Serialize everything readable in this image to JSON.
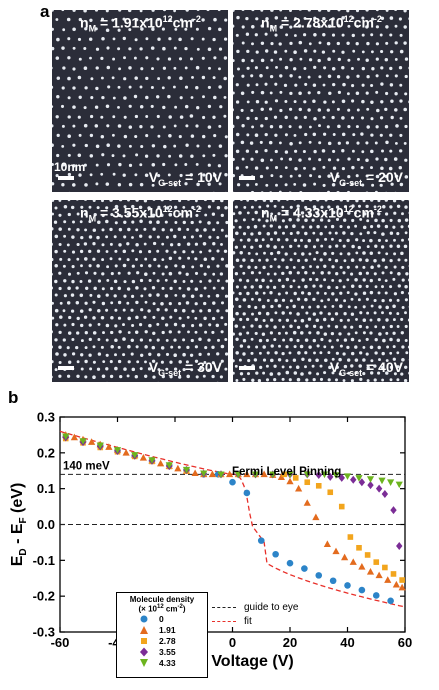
{
  "panel_a": {
    "letter": "a",
    "scale_label": "10nm",
    "images": [
      {
        "density_value": "1.91x10",
        "density_exp": "12",
        "density_unit": "cm",
        "density_unit_exp": "-2",
        "voltage_value": "= 10V"
      },
      {
        "density_value": "2.78x10",
        "density_exp": "12",
        "density_unit": "cm",
        "density_unit_exp": "-2",
        "voltage_value": "= 20V"
      },
      {
        "density_value": "3.55x10",
        "density_exp": "12",
        "density_unit": "cm",
        "density_unit_exp": "-2",
        "voltage_value": "= 30V"
      },
      {
        "density_value": "4.33x10",
        "density_exp": "12",
        "density_unit": "cm",
        "density_unit_exp": "-2",
        "voltage_value": "= 40V"
      }
    ],
    "density_symbol": "n",
    "density_sub": "M",
    "voltage_symbol": "V",
    "voltage_sub": "G-set"
  },
  "panel_b": {
    "letter": "b",
    "chart_data": {
      "type": "scatter",
      "xlabel": "Gate Voltage (V)",
      "ylabel_main": "E",
      "ylabel_sub1": "D",
      "ylabel_mid": " - E",
      "ylabel_sub2": "F",
      "ylabel_unit": " (eV)",
      "xlim": [
        -60,
        60
      ],
      "ylim": [
        -0.3,
        0.3
      ],
      "xticks": [
        -60,
        -40,
        -20,
        0,
        20,
        40,
        60
      ],
      "yticks": [
        -0.3,
        -0.2,
        -0.1,
        0.0,
        0.1,
        0.2,
        0.3
      ],
      "ytick_labels": [
        "-0.3",
        "-0.2",
        "-0.1",
        "0.0",
        "0.1",
        "0.2",
        "0.3"
      ],
      "annotations": {
        "pinning": "Fermi Level Pinning",
        "mev": "140 meV"
      },
      "guide_lines": [
        0.14,
        0.0
      ],
      "legend": {
        "title": "Molecule density",
        "unit_prefix": "(× 10",
        "unit_exp": "12",
        "unit_suffix": " cm",
        "unit_exp2": "-2",
        "unit_close": ")"
      },
      "line_legend": {
        "guide": "guide to eye",
        "fit": "fit"
      },
      "series": [
        {
          "name": "0",
          "color": "#2c84c8",
          "marker": "circle",
          "points": [
            [
              -58,
              0.245
            ],
            [
              -52,
              0.232
            ],
            [
              -46,
              0.22
            ],
            [
              -40,
              0.207
            ],
            [
              -34,
              0.192
            ],
            [
              -28,
              0.178
            ],
            [
              -22,
              0.165
            ],
            [
              -16,
              0.152
            ],
            [
              -10,
              0.14
            ],
            [
              -5,
              0.14
            ],
            [
              0,
              0.118
            ],
            [
              5,
              0.088
            ],
            [
              10,
              -0.045
            ],
            [
              15,
              -0.083
            ],
            [
              20,
              -0.108
            ],
            [
              25,
              -0.123
            ],
            [
              30,
              -0.142
            ],
            [
              35,
              -0.157
            ],
            [
              40,
              -0.17
            ],
            [
              45,
              -0.183
            ],
            [
              50,
              -0.198
            ],
            [
              55,
              -0.213
            ]
          ]
        },
        {
          "name": "1.91",
          "color": "#e36b1e",
          "marker": "triangle",
          "points": [
            [
              -58,
              0.25
            ],
            [
              -55,
              0.243
            ],
            [
              -52,
              0.237
            ],
            [
              -49,
              0.23
            ],
            [
              -46,
              0.223
            ],
            [
              -43,
              0.216
            ],
            [
              -40,
              0.208
            ],
            [
              -37,
              0.2
            ],
            [
              -34,
              0.193
            ],
            [
              -31,
              0.186
            ],
            [
              -28,
              0.178
            ],
            [
              -25,
              0.17
            ],
            [
              -22,
              0.163
            ],
            [
              -19,
              0.156
            ],
            [
              -16,
              0.149
            ],
            [
              -13,
              0.143
            ],
            [
              -10,
              0.14
            ],
            [
              -7,
              0.14
            ],
            [
              -4,
              0.14
            ],
            [
              -1,
              0.14
            ],
            [
              2,
              0.14
            ],
            [
              5,
              0.14
            ],
            [
              8,
              0.14
            ],
            [
              11,
              0.14
            ],
            [
              14,
              0.138
            ],
            [
              17,
              0.132
            ],
            [
              20,
              0.12
            ],
            [
              23,
              0.1
            ],
            [
              26,
              0.06
            ],
            [
              29,
              0.02
            ],
            [
              33,
              -0.055
            ],
            [
              36,
              -0.075
            ],
            [
              39,
              -0.092
            ],
            [
              42,
              -0.105
            ],
            [
              45,
              -0.118
            ],
            [
              48,
              -0.132
            ],
            [
              51,
              -0.142
            ],
            [
              54,
              -0.155
            ],
            [
              57,
              -0.168
            ],
            [
              59,
              -0.176
            ]
          ]
        },
        {
          "name": "2.78",
          "color": "#f2a51d",
          "marker": "square",
          "points": [
            [
              -58,
              0.24
            ],
            [
              -52,
              0.228
            ],
            [
              -46,
              0.215
            ],
            [
              -40,
              0.203
            ],
            [
              -34,
              0.19
            ],
            [
              -28,
              0.176
            ],
            [
              -22,
              0.162
            ],
            [
              -16,
              0.15
            ],
            [
              -10,
              0.142
            ],
            [
              -4,
              0.14
            ],
            [
              2,
              0.14
            ],
            [
              8,
              0.14
            ],
            [
              14,
              0.14
            ],
            [
              18,
              0.14
            ],
            [
              22,
              0.13
            ],
            [
              26,
              0.118
            ],
            [
              30,
              0.108
            ],
            [
              34,
              0.09
            ],
            [
              38,
              0.05
            ],
            [
              41,
              -0.035
            ],
            [
              44,
              -0.065
            ],
            [
              47,
              -0.085
            ],
            [
              50,
              -0.105
            ],
            [
              53,
              -0.12
            ],
            [
              56,
              -0.138
            ],
            [
              59,
              -0.155
            ]
          ]
        },
        {
          "name": "3.55",
          "color": "#7b2d96",
          "marker": "diamond",
          "points": [
            [
              -58,
              0.243
            ],
            [
              -52,
              0.23
            ],
            [
              -46,
              0.218
            ],
            [
              -40,
              0.205
            ],
            [
              -34,
              0.192
            ],
            [
              -28,
              0.178
            ],
            [
              -22,
              0.163
            ],
            [
              -16,
              0.152
            ],
            [
              -10,
              0.142
            ],
            [
              -4,
              0.14
            ],
            [
              2,
              0.14
            ],
            [
              8,
              0.14
            ],
            [
              14,
              0.14
            ],
            [
              20,
              0.14
            ],
            [
              26,
              0.14
            ],
            [
              30,
              0.138
            ],
            [
              34,
              0.133
            ],
            [
              38,
              0.13
            ],
            [
              42,
              0.125
            ],
            [
              45,
              0.118
            ],
            [
              48,
              0.11
            ],
            [
              51,
              0.1
            ],
            [
              53,
              0.085
            ],
            [
              56,
              0.04
            ],
            [
              58,
              -0.06
            ]
          ]
        },
        {
          "name": "4.33",
          "color": "#6cb41e",
          "marker": "tri-down",
          "points": [
            [
              -58,
              0.246
            ],
            [
              -52,
              0.233
            ],
            [
              -46,
              0.221
            ],
            [
              -40,
              0.208
            ],
            [
              -34,
              0.194
            ],
            [
              -28,
              0.18
            ],
            [
              -22,
              0.166
            ],
            [
              -16,
              0.153
            ],
            [
              -10,
              0.143
            ],
            [
              -4,
              0.14
            ],
            [
              2,
              0.14
            ],
            [
              8,
              0.14
            ],
            [
              14,
              0.14
            ],
            [
              20,
              0.14
            ],
            [
              26,
              0.14
            ],
            [
              32,
              0.14
            ],
            [
              36,
              0.138
            ],
            [
              40,
              0.135
            ],
            [
              44,
              0.13
            ],
            [
              48,
              0.127
            ],
            [
              52,
              0.123
            ],
            [
              55,
              0.118
            ],
            [
              58,
              0.112
            ]
          ]
        }
      ]
    }
  }
}
